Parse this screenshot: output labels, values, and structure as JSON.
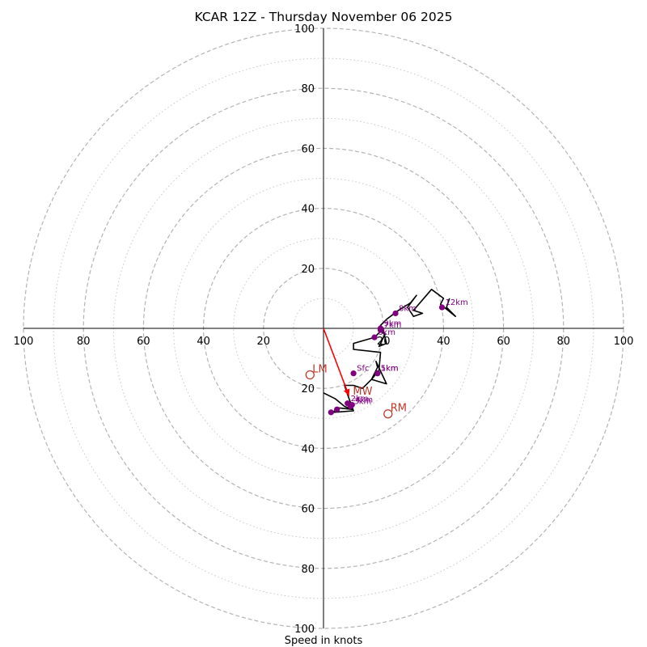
{
  "chart_data": {
    "type": "scatter",
    "subtype": "hodograph",
    "title": "KCAR 12Z - Thursday November 06 2025",
    "xlabel": "Speed in knots",
    "ylabel": "",
    "units": "knots",
    "xlim": [
      -100,
      100
    ],
    "ylim": [
      -100,
      100
    ],
    "rings_major": [
      20,
      40,
      60,
      80,
      100
    ],
    "rings_minor": [
      10,
      30,
      50,
      70,
      90
    ],
    "x_tick_labels": [
      "100",
      "80",
      "60",
      "40",
      "20",
      "20",
      "40",
      "60",
      "80",
      "100"
    ],
    "y_tick_labels": [
      "100",
      "80",
      "60",
      "40",
      "20",
      "20",
      "40",
      "60",
      "80",
      "100"
    ],
    "hodograph_line": {
      "color": "#000000",
      "points": [
        [
          0,
          -21.5
        ],
        [
          4,
          -23.5
        ],
        [
          7,
          -26
        ],
        [
          9.5,
          -27
        ],
        [
          5,
          -26.5
        ],
        [
          3,
          -28
        ],
        [
          10,
          -27.5
        ],
        [
          8,
          -22
        ],
        [
          7,
          -19
        ],
        [
          10,
          -19
        ],
        [
          13,
          -20
        ],
        [
          16,
          -17
        ],
        [
          18,
          -13
        ],
        [
          17.5,
          -11
        ],
        [
          21,
          -18.5
        ],
        [
          16,
          -17
        ],
        [
          18.5,
          -14
        ],
        [
          19,
          -8
        ],
        [
          10,
          -7
        ],
        [
          10,
          -5
        ],
        [
          17,
          -3
        ],
        [
          19,
          -1
        ],
        [
          20.5,
          -2
        ],
        [
          18.5,
          -6
        ],
        [
          21,
          -5
        ],
        [
          20,
          -1
        ],
        [
          19,
          1
        ],
        [
          21,
          3
        ],
        [
          23,
          4.5
        ],
        [
          25,
          6
        ],
        [
          29,
          8.5
        ],
        [
          31,
          11
        ],
        [
          28,
          7
        ],
        [
          30,
          4
        ],
        [
          33,
          5
        ],
        [
          30,
          6
        ],
        [
          36,
          13
        ],
        [
          40,
          10
        ],
        [
          39,
          8
        ],
        [
          44,
          4
        ],
        [
          41,
          7
        ],
        [
          42,
          10
        ]
      ]
    },
    "height_markers": [
      {
        "label": "Sfc",
        "x": 10,
        "y": -15
      },
      {
        "label": "1km",
        "x": 18,
        "y": -15
      },
      {
        "label": "2km",
        "x": 8,
        "y": -25
      },
      {
        "label": "3km",
        "x": 9,
        "y": -26
      },
      {
        "label": "4km",
        "x": 9.5,
        "y": -25.5
      },
      {
        "label": "5km",
        "x": 18,
        "y": -15
      },
      {
        "label": "6km",
        "x": 17,
        "y": -3
      },
      {
        "label": "7km",
        "x": 19,
        "y": -0.5
      },
      {
        "label": "8km",
        "x": 24,
        "y": 5
      },
      {
        "label": "9km",
        "x": 19,
        "y": 0
      },
      {
        "label": "12km",
        "x": 39.5,
        "y": 7
      },
      {
        "label": "",
        "x": 4.5,
        "y": -27
      },
      {
        "label": "",
        "x": 2.5,
        "y": -28
      }
    ],
    "storm_motion": [
      {
        "label": "LM",
        "x": -4.5,
        "y": -15.5
      },
      {
        "label": "RM",
        "x": 21.5,
        "y": -28.5
      },
      {
        "label": "MW",
        "x": 9,
        "y": -21
      }
    ],
    "mean_wind_vector": {
      "color": "#ff0000",
      "from": [
        0,
        0
      ],
      "to": [
        8.5,
        -22.5
      ]
    }
  }
}
